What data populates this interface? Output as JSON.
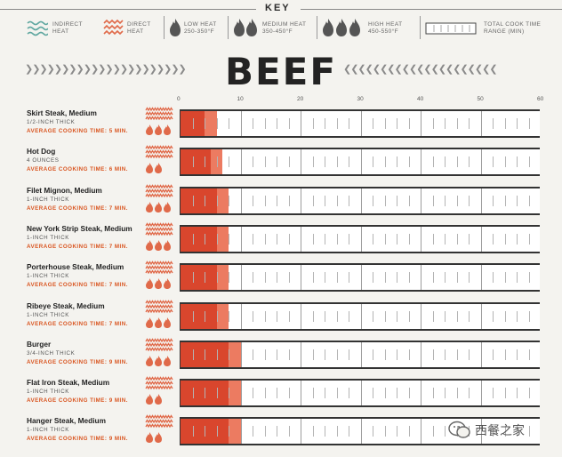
{
  "key": {
    "title": "KEY",
    "indirect_line1": "INDIRECT",
    "indirect_line2": "HEAT",
    "direct_line1": "DIRECT",
    "direct_line2": "HEAT",
    "low_line1": "LOW HEAT",
    "low_line2": "250-350°F",
    "medium_line1": "MEDIUM HEAT",
    "medium_line2": "350-450°F",
    "high_line1": "HIGH HEAT",
    "high_line2": "450-550°F",
    "total_line1": "TOTAL COOK TIME",
    "total_line2": "RANGE (MIN)",
    "indirect_color": "#5fa7a0",
    "direct_color": "#e06a4a"
  },
  "title": "BEEF",
  "watermark": "西餐之家",
  "chart_data": {
    "type": "bar",
    "x_ticks": [
      0,
      10,
      20,
      30,
      40,
      50,
      60
    ],
    "xlim": [
      0,
      60
    ],
    "colors": {
      "min_range": "#d9462d",
      "max_range": "#ec7b61"
    },
    "rows": [
      {
        "name": "Skirt Steak, Medium",
        "thickness": "1/2-INCH THICK",
        "avg": "AVERAGE COOKING TIME: 5 MIN.",
        "heat": "direct",
        "flames": 3,
        "range": [
          4,
          6
        ]
      },
      {
        "name": "Hot Dog",
        "thickness": "4 OUNCES",
        "avg": "AVERAGE COOKING TIME: 6 MIN.",
        "heat": "direct",
        "flames": 2,
        "range": [
          5,
          7
        ]
      },
      {
        "name": "Filet Mignon, Medium",
        "thickness": "1-INCH THICK",
        "avg": "AVERAGE COOKING TIME: 7 MIN.",
        "heat": "direct",
        "flames": 3,
        "range": [
          6,
          8
        ]
      },
      {
        "name": "New York Strip Steak, Medium",
        "thickness": "1-INCH THICK",
        "avg": "AVERAGE COOKING TIME: 7 MIN.",
        "heat": "direct",
        "flames": 3,
        "range": [
          6,
          8
        ]
      },
      {
        "name": "Porterhouse Steak, Medium",
        "thickness": "1-INCH THICK",
        "avg": "AVERAGE COOKING TIME: 7 MIN.",
        "heat": "direct",
        "flames": 3,
        "range": [
          6,
          8
        ]
      },
      {
        "name": "Ribeye Steak, Medium",
        "thickness": "1-INCH THICK",
        "avg": "AVERAGE COOKING TIME: 7 MIN.",
        "heat": "direct",
        "flames": 3,
        "range": [
          6,
          8
        ]
      },
      {
        "name": "Burger",
        "thickness": "3/4-INCH THICK",
        "avg": "AVERAGE COOKING TIME: 9 MIN.",
        "heat": "direct",
        "flames": 3,
        "range": [
          8,
          10
        ]
      },
      {
        "name": "Flat Iron Steak, Medium",
        "thickness": "1-INCH THICK",
        "avg": "AVERAGE COOKING TIME: 9 MIN.",
        "heat": "direct",
        "flames": 2,
        "range": [
          8,
          10
        ]
      },
      {
        "name": "Hanger Steak, Medium",
        "thickness": "1-INCH THICK",
        "avg": "AVERAGE COOKING TIME: 9 MIN.",
        "heat": "direct",
        "flames": 2,
        "range": [
          8,
          10
        ]
      }
    ]
  }
}
